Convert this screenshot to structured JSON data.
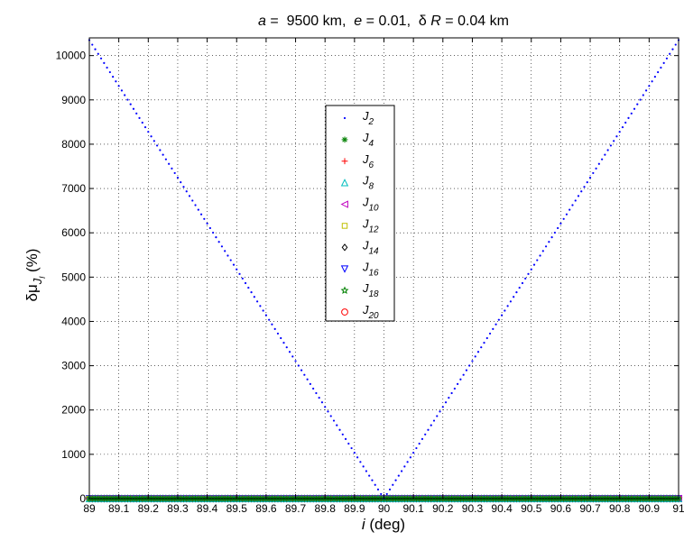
{
  "chart_data": {
    "type": "scatter",
    "title_parts": {
      "a_symbol": "a",
      "a_rest": " =  9500 km,  ",
      "e_symbol": "e",
      "e_rest": " = 0.01,  δ ",
      "r_symbol": "R",
      "r_rest": " = 0.04 km"
    },
    "xlabel_symbol": "i",
    "xlabel_rest": " (deg)",
    "ylabel_main": "δμ",
    "ylabel_sub_symbol": "J",
    "ylabel_subsub": "l",
    "ylabel_unit": " (%)",
    "xlim": [
      89,
      91
    ],
    "ylim": [
      0,
      10400
    ],
    "xticks": [
      89,
      89.1,
      89.2,
      89.3,
      89.4,
      89.5,
      89.6,
      89.7,
      89.8,
      89.9,
      90,
      90.1,
      90.2,
      90.3,
      90.4,
      90.5,
      90.6,
      90.7,
      90.8,
      90.9,
      91
    ],
    "xtick_labels": [
      "89",
      "89.1",
      "89.2",
      "89.3",
      "89.4",
      "89.5",
      "89.6",
      "89.7",
      "89.8",
      "89.9",
      "90",
      "90.1",
      "90.2",
      "90.3",
      "90.4",
      "90.5",
      "90.6",
      "90.7",
      "90.8",
      "90.9",
      "91"
    ],
    "yticks": [
      0,
      1000,
      2000,
      3000,
      4000,
      5000,
      6000,
      7000,
      8000,
      9000,
      10000
    ],
    "ytick_labels": [
      "0",
      "1000",
      "2000",
      "3000",
      "4000",
      "5000",
      "6000",
      "7000",
      "8000",
      "9000",
      "10000"
    ],
    "grid": true,
    "grid_style": "dotted",
    "legend_position": "upper-center",
    "x_sample_step": 0.01,
    "series": [
      {
        "name_base": "J",
        "name_sub": "2",
        "marker": "dot",
        "color": "#0000ff",
        "peak_value": 10350,
        "minimum_at": 90,
        "shape": "linear-v"
      },
      {
        "name_base": "J",
        "name_sub": "4",
        "marker": "asterisk",
        "color": "#008000",
        "constant_value": 0
      },
      {
        "name_base": "J",
        "name_sub": "6",
        "marker": "plus",
        "color": "#ff0000",
        "constant_value": 0
      },
      {
        "name_base": "J",
        "name_sub": "8",
        "marker": "triangle-up",
        "color": "#00bfbf",
        "constant_value": 0
      },
      {
        "name_base": "J",
        "name_sub": "10",
        "marker": "triangle-left",
        "color": "#bf00bf",
        "constant_value": 0
      },
      {
        "name_base": "J",
        "name_sub": "12",
        "marker": "square",
        "color": "#bfbf00",
        "constant_value": 0
      },
      {
        "name_base": "J",
        "name_sub": "14",
        "marker": "diamond",
        "color": "#000000",
        "constant_value": 0
      },
      {
        "name_base": "J",
        "name_sub": "16",
        "marker": "triangle-down",
        "color": "#0000ff",
        "constant_value": 0
      },
      {
        "name_base": "J",
        "name_sub": "18",
        "marker": "pentagram",
        "color": "#008000",
        "constant_value": 0
      },
      {
        "name_base": "J",
        "name_sub": "20",
        "marker": "circle",
        "color": "#ff0000",
        "constant_value": 0
      }
    ]
  }
}
